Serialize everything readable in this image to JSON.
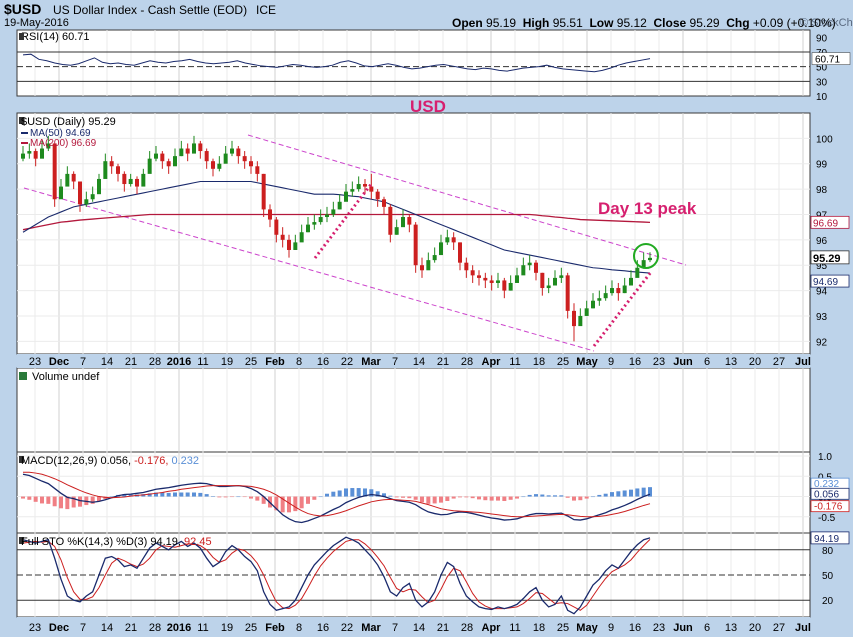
{
  "header": {
    "symbol": "$USD",
    "name": "US Dollar Index - Cash Settle (EOD)",
    "exchange": "ICE",
    "date": "19-May-2016",
    "open_label": "Open",
    "open": "95.19",
    "high_label": "High",
    "high": "95.51",
    "low_label": "Low",
    "low": "95.12",
    "close_label": "Close",
    "close": "95.29",
    "chg_label": "Chg",
    "chg": "+0.09 (+0.10%)",
    "watermark": "© StockCharts.com"
  },
  "colors": {
    "background": "#bdd3ea",
    "panel": "#ffffff",
    "up": "#1e8a1e",
    "down": "#cc1f1f",
    "navy": "#1a2a6c",
    "maroon": "#b3183c",
    "annotation": "#d6206f",
    "channel": "#cc44cc",
    "hist_pos": "#5a8fd6",
    "hist_neg": "#f07f84",
    "circle": "#22aa22"
  },
  "chart_data": [
    {
      "type": "line",
      "panel": "rsi",
      "legend": "RSI(14)",
      "legend_value": "60.71",
      "ylim": [
        10,
        100
      ],
      "ticks": [
        "90",
        "70",
        "50",
        "30",
        "10"
      ],
      "tick_values": [
        90,
        70,
        50,
        30,
        10
      ],
      "last_label": "60.71",
      "series": [
        {
          "values": [
            66,
            67,
            60,
            58,
            55,
            53,
            52,
            54,
            58,
            62,
            56,
            54,
            55,
            53,
            52,
            55,
            58,
            56,
            55,
            57,
            58,
            60,
            57,
            55,
            54,
            55,
            56,
            58,
            55,
            53,
            51,
            50,
            49,
            51,
            53,
            52,
            50,
            49,
            50,
            52,
            56,
            58,
            55,
            51,
            50,
            52,
            54,
            52,
            49,
            47,
            48,
            50,
            52,
            53,
            51,
            49,
            47,
            46,
            48,
            47,
            45,
            44,
            46,
            48,
            49,
            50,
            52,
            49,
            47,
            46,
            45,
            44,
            43,
            45,
            48,
            52,
            55,
            57,
            59,
            61
          ]
        }
      ]
    },
    {
      "type": "candlestick",
      "panel": "price",
      "legend": "$USD (Daily)",
      "legend_value": "95.29",
      "ma50_label": "MA(50)",
      "ma50_value": "94.69",
      "ma200_label": "MA(200)",
      "ma200_value": "96.69",
      "ylim": [
        91.5,
        101.0
      ],
      "ticks": [
        "100",
        "99",
        "98",
        "97",
        "96",
        "95",
        "94",
        "93",
        "92"
      ],
      "tick_values": [
        100,
        99,
        98,
        97,
        96,
        95,
        94,
        93,
        92
      ],
      "last_close_label": "95.29",
      "ma200_last_label": "96.69",
      "ma50_last_label": "94.69",
      "annotations": [
        {
          "text": "USD",
          "style": "title"
        },
        {
          "text": "Day 13 peak",
          "style": "callout"
        }
      ],
      "close": [
        99.4,
        99.5,
        99.2,
        99.6,
        99.8,
        97.6,
        98.1,
        98.6,
        98.3,
        97.4,
        97.6,
        97.8,
        98.4,
        99.1,
        98.9,
        98.6,
        98.2,
        98.4,
        98.1,
        98.6,
        99.2,
        99.4,
        99.1,
        98.9,
        99.3,
        99.6,
        99.4,
        99.8,
        99.5,
        99.1,
        98.8,
        99.0,
        99.4,
        99.6,
        99.3,
        99.1,
        98.9,
        98.6,
        97.2,
        96.8,
        96.2,
        96.0,
        95.6,
        95.9,
        96.3,
        96.6,
        96.7,
        96.9,
        97.0,
        97.2,
        97.5,
        97.9,
        98.0,
        98.2,
        98.1,
        97.9,
        97.6,
        97.3,
        96.2,
        96.5,
        96.9,
        96.6,
        95.0,
        94.8,
        95.2,
        95.4,
        95.9,
        96.1,
        95.9,
        95.1,
        94.8,
        94.6,
        94.5,
        94.4,
        94.3,
        94.4,
        94.0,
        94.3,
        94.6,
        95.0,
        95.1,
        94.7,
        94.1,
        94.2,
        94.5,
        94.6,
        93.2,
        92.6,
        93.0,
        93.3,
        93.6,
        93.7,
        93.9,
        94.1,
        93.9,
        94.2,
        94.5,
        94.9,
        95.2,
        95.29
      ],
      "high": [
        99.7,
        99.8,
        99.6,
        99.9,
        100.1,
        99.3,
        98.4,
        98.9,
        98.7,
        98.0,
        97.9,
        98.1,
        98.6,
        99.4,
        99.3,
        99.0,
        98.7,
        98.6,
        98.5,
        98.8,
        99.5,
        99.7,
        99.5,
        99.2,
        99.6,
        99.9,
        99.8,
        100.1,
        99.9,
        99.6,
        99.2,
        99.3,
        99.7,
        99.9,
        99.7,
        99.5,
        99.3,
        99.1,
        98.6,
        97.4,
        96.9,
        96.5,
        96.2,
        96.2,
        96.6,
        96.9,
        97.0,
        97.2,
        97.3,
        97.5,
        97.8,
        98.2,
        98.3,
        98.5,
        98.4,
        98.6,
        98.0,
        97.7,
        97.4,
        96.8,
        97.2,
        97.0,
        96.7,
        95.3,
        95.5,
        95.7,
        96.2,
        96.4,
        96.3,
        95.9,
        95.3,
        95.0,
        94.8,
        94.7,
        94.6,
        94.7,
        94.5,
        94.6,
        94.9,
        95.3,
        95.4,
        95.2,
        94.7,
        94.5,
        94.8,
        94.9,
        94.7,
        93.5,
        93.3,
        93.6,
        93.9,
        94.0,
        94.2,
        94.4,
        94.3,
        94.5,
        94.8,
        95.2,
        95.5,
        95.51
      ],
      "low": [
        99.1,
        99.2,
        98.9,
        99.3,
        99.5,
        97.3,
        97.7,
        98.2,
        98.0,
        97.1,
        97.3,
        97.5,
        98.1,
        98.8,
        98.6,
        98.3,
        97.9,
        98.1,
        97.8,
        98.3,
        98.9,
        99.1,
        98.8,
        98.6,
        99.0,
        99.3,
        99.1,
        99.5,
        99.2,
        98.8,
        98.5,
        98.7,
        99.1,
        99.3,
        99.0,
        98.8,
        98.6,
        98.3,
        96.9,
        96.5,
        95.9,
        95.7,
        95.3,
        95.6,
        96.0,
        96.3,
        96.4,
        96.6,
        96.7,
        96.9,
        97.2,
        97.6,
        97.7,
        97.9,
        97.8,
        97.6,
        97.3,
        97.0,
        95.9,
        96.2,
        96.6,
        96.3,
        94.7,
        94.5,
        94.9,
        95.1,
        95.6,
        95.8,
        95.6,
        94.8,
        94.5,
        94.3,
        94.2,
        94.1,
        94.0,
        94.1,
        93.7,
        94.0,
        94.3,
        94.7,
        94.8,
        94.4,
        93.8,
        93.9,
        94.2,
        94.3,
        92.9,
        92.0,
        92.7,
        93.0,
        93.3,
        93.4,
        93.6,
        93.8,
        93.6,
        93.9,
        94.2,
        94.6,
        94.9,
        95.12
      ],
      "ma50": [
        96.3,
        96.45,
        96.6,
        96.75,
        96.9,
        97.0,
        97.1,
        97.2,
        97.3,
        97.35,
        97.4,
        97.45,
        97.5,
        97.55,
        97.6,
        97.65,
        97.7,
        97.75,
        97.8,
        97.85,
        97.9,
        97.95,
        98.0,
        98.05,
        98.1,
        98.15,
        98.2,
        98.25,
        98.3,
        98.3,
        98.3,
        98.3,
        98.3,
        98.3,
        98.3,
        98.3,
        98.3,
        98.25,
        98.2,
        98.15,
        98.1,
        98.05,
        98.0,
        97.95,
        97.9,
        97.85,
        97.8,
        97.8,
        97.8,
        97.8,
        97.78,
        97.75,
        97.72,
        97.7,
        97.65,
        97.6,
        97.55,
        97.5,
        97.4,
        97.3,
        97.2,
        97.1,
        97.0,
        96.9,
        96.8,
        96.7,
        96.6,
        96.5,
        96.4,
        96.3,
        96.2,
        96.1,
        96.0,
        95.9,
        95.8,
        95.7,
        95.6,
        95.55,
        95.5,
        95.45,
        95.4,
        95.35,
        95.3,
        95.25,
        95.2,
        95.15,
        95.1,
        95.05,
        95.0,
        94.95,
        94.9,
        94.88,
        94.85,
        94.82,
        94.8,
        94.78,
        94.75,
        94.73,
        94.71,
        94.69
      ],
      "ma200": [
        96.4,
        96.45,
        96.5,
        96.55,
        96.6,
        96.65,
        96.7,
        96.72,
        96.75,
        96.78,
        96.8,
        96.82,
        96.84,
        96.86,
        96.88,
        96.9,
        96.92,
        96.94,
        96.96,
        96.98,
        97.0,
        97.0,
        97.0,
        97.0,
        97.0,
        97.0,
        97.0,
        97.0,
        97.0,
        97.0,
        97.0,
        97.0,
        97.0,
        97.0,
        97.0,
        97.0,
        97.0,
        97.0,
        97.0,
        97.0,
        97.0,
        97.0,
        97.0,
        97.0,
        97.0,
        97.0,
        97.0,
        97.0,
        97.0,
        97.0,
        97.0,
        97.0,
        97.0,
        97.0,
        97.0,
        97.0,
        97.0,
        97.0,
        97.0,
        97.0,
        97.0,
        97.0,
        97.0,
        97.0,
        97.0,
        97.0,
        97.0,
        97.0,
        97.0,
        97.0,
        97.0,
        97.0,
        97.0,
        97.0,
        97.0,
        97.0,
        97.0,
        97.0,
        97.0,
        97.0,
        97.0,
        96.98,
        96.95,
        96.93,
        96.9,
        96.88,
        96.85,
        96.83,
        96.8,
        96.79,
        96.78,
        96.77,
        96.76,
        96.75,
        96.74,
        96.73,
        96.72,
        96.71,
        96.7,
        96.69
      ]
    },
    {
      "type": "bar",
      "panel": "volume",
      "legend": "Volume undef",
      "values": []
    },
    {
      "type": "line",
      "panel": "macd",
      "legend": "MACD(12,26,9)",
      "macd_value": "0.056",
      "signal_value": "-0.176",
      "hist_value": "0.232",
      "ylim": [
        -0.9,
        1.1
      ],
      "ticks": [
        "1.0",
        "0.5",
        "0.0",
        "-0.5"
      ],
      "tick_values": [
        1.0,
        0.5,
        0.0,
        -0.5
      ],
      "macd": [
        0.55,
        0.52,
        0.45,
        0.38,
        0.32,
        0.2,
        0.08,
        -0.02,
        -0.05,
        -0.1,
        -0.12,
        -0.14,
        -0.12,
        -0.08,
        -0.03,
        0.02,
        0.05,
        0.06,
        0.08,
        0.1,
        0.14,
        0.18,
        0.2,
        0.22,
        0.25,
        0.28,
        0.3,
        0.32,
        0.33,
        0.32,
        0.28,
        0.25,
        0.25,
        0.26,
        0.27,
        0.25,
        0.2,
        0.12,
        0.0,
        -0.15,
        -0.3,
        -0.45,
        -0.55,
        -0.62,
        -0.64,
        -0.6,
        -0.54,
        -0.48,
        -0.4,
        -0.32,
        -0.25,
        -0.15,
        -0.08,
        -0.02,
        0.02,
        0.05,
        0.03,
        0.0,
        -0.05,
        -0.1,
        -0.12,
        -0.14,
        -0.2,
        -0.3,
        -0.38,
        -0.42,
        -0.45,
        -0.44,
        -0.4,
        -0.38,
        -0.39,
        -0.42,
        -0.46,
        -0.5,
        -0.53,
        -0.55,
        -0.58,
        -0.57,
        -0.55,
        -0.5,
        -0.45,
        -0.42,
        -0.42,
        -0.43,
        -0.42,
        -0.41,
        -0.48,
        -0.57,
        -0.58,
        -0.55,
        -0.5,
        -0.45,
        -0.4,
        -0.33,
        -0.28,
        -0.22,
        -0.15,
        -0.07,
        0.0,
        0.056
      ],
      "signal": [
        0.6,
        0.6,
        0.58,
        0.55,
        0.5,
        0.44,
        0.37,
        0.29,
        0.22,
        0.15,
        0.09,
        0.04,
        0.0,
        -0.02,
        -0.03,
        -0.02,
        -0.01,
        0.01,
        0.03,
        0.04,
        0.06,
        0.08,
        0.1,
        0.13,
        0.15,
        0.18,
        0.2,
        0.22,
        0.24,
        0.26,
        0.27,
        0.27,
        0.27,
        0.27,
        0.27,
        0.26,
        0.25,
        0.22,
        0.18,
        0.12,
        0.04,
        -0.06,
        -0.16,
        -0.26,
        -0.35,
        -0.42,
        -0.46,
        -0.48,
        -0.47,
        -0.44,
        -0.4,
        -0.35,
        -0.29,
        -0.23,
        -0.18,
        -0.13,
        -0.1,
        -0.08,
        -0.07,
        -0.08,
        -0.09,
        -0.1,
        -0.12,
        -0.16,
        -0.2,
        -0.25,
        -0.3,
        -0.33,
        -0.35,
        -0.36,
        -0.37,
        -0.38,
        -0.39,
        -0.41,
        -0.43,
        -0.45,
        -0.47,
        -0.49,
        -0.5,
        -0.5,
        -0.49,
        -0.48,
        -0.47,
        -0.46,
        -0.45,
        -0.44,
        -0.45,
        -0.47,
        -0.49,
        -0.5,
        -0.5,
        -0.49,
        -0.47,
        -0.44,
        -0.41,
        -0.37,
        -0.32,
        -0.27,
        -0.22,
        -0.176
      ]
    },
    {
      "type": "line",
      "panel": "sto",
      "legend": "Full STO %K(14,3) %D(3)",
      "k_value": "94.19",
      "d_value": "92.45",
      "ylim": [
        0,
        100
      ],
      "ticks": [
        "80",
        "50",
        "20"
      ],
      "tick_values": [
        80,
        50,
        20
      ],
      "last_label": "94.19",
      "k": [
        92,
        90,
        88,
        90,
        92,
        70,
        45,
        25,
        20,
        18,
        25,
        30,
        50,
        70,
        72,
        68,
        60,
        62,
        58,
        70,
        82,
        88,
        84,
        80,
        86,
        90,
        84,
        88,
        82,
        70,
        60,
        65,
        78,
        85,
        80,
        72,
        66,
        55,
        30,
        15,
        8,
        10,
        12,
        20,
        35,
        50,
        62,
        70,
        78,
        85,
        90,
        95,
        92,
        88,
        80,
        72,
        62,
        48,
        30,
        25,
        35,
        40,
        20,
        12,
        18,
        30,
        50,
        65,
        60,
        40,
        25,
        18,
        12,
        10,
        9,
        12,
        10,
        12,
        15,
        22,
        30,
        35,
        20,
        12,
        15,
        25,
        8,
        4,
        12,
        25,
        38,
        45,
        55,
        62,
        58,
        68,
        78,
        86,
        92,
        94.19
      ],
      "d": [
        88,
        89,
        90,
        89,
        90,
        84,
        68,
        47,
        30,
        21,
        21,
        24,
        35,
        50,
        64,
        70,
        67,
        63,
        60,
        63,
        70,
        80,
        85,
        84,
        83,
        85,
        87,
        87,
        85,
        80,
        71,
        65,
        68,
        76,
        81,
        79,
        73,
        64,
        50,
        33,
        18,
        11,
        10,
        14,
        22,
        35,
        49,
        61,
        70,
        78,
        84,
        90,
        92,
        92,
        87,
        80,
        71,
        61,
        47,
        34,
        30,
        33,
        32,
        24,
        17,
        20,
        33,
        48,
        58,
        55,
        42,
        28,
        18,
        13,
        10,
        10,
        10,
        11,
        12,
        16,
        22,
        29,
        28,
        22,
        16,
        17,
        16,
        12,
        8,
        14,
        25,
        36,
        46,
        54,
        58,
        62,
        68,
        77,
        85,
        92.45
      ]
    }
  ],
  "x_axis": {
    "labels": [
      "23",
      "Dec",
      "7",
      "14",
      "21",
      "28",
      "2016",
      "11",
      "19",
      "25",
      "Feb",
      "8",
      "16",
      "22",
      "Mar",
      "7",
      "14",
      "21",
      "28",
      "Apr",
      "11",
      "18",
      "25",
      "May",
      "9",
      "16",
      "23",
      "Jun",
      "6",
      "13",
      "20",
      "27",
      "Jul"
    ],
    "bold": [
      "Dec",
      "2016",
      "Feb",
      "Mar",
      "Apr",
      "May",
      "Jun",
      "Jul"
    ]
  }
}
